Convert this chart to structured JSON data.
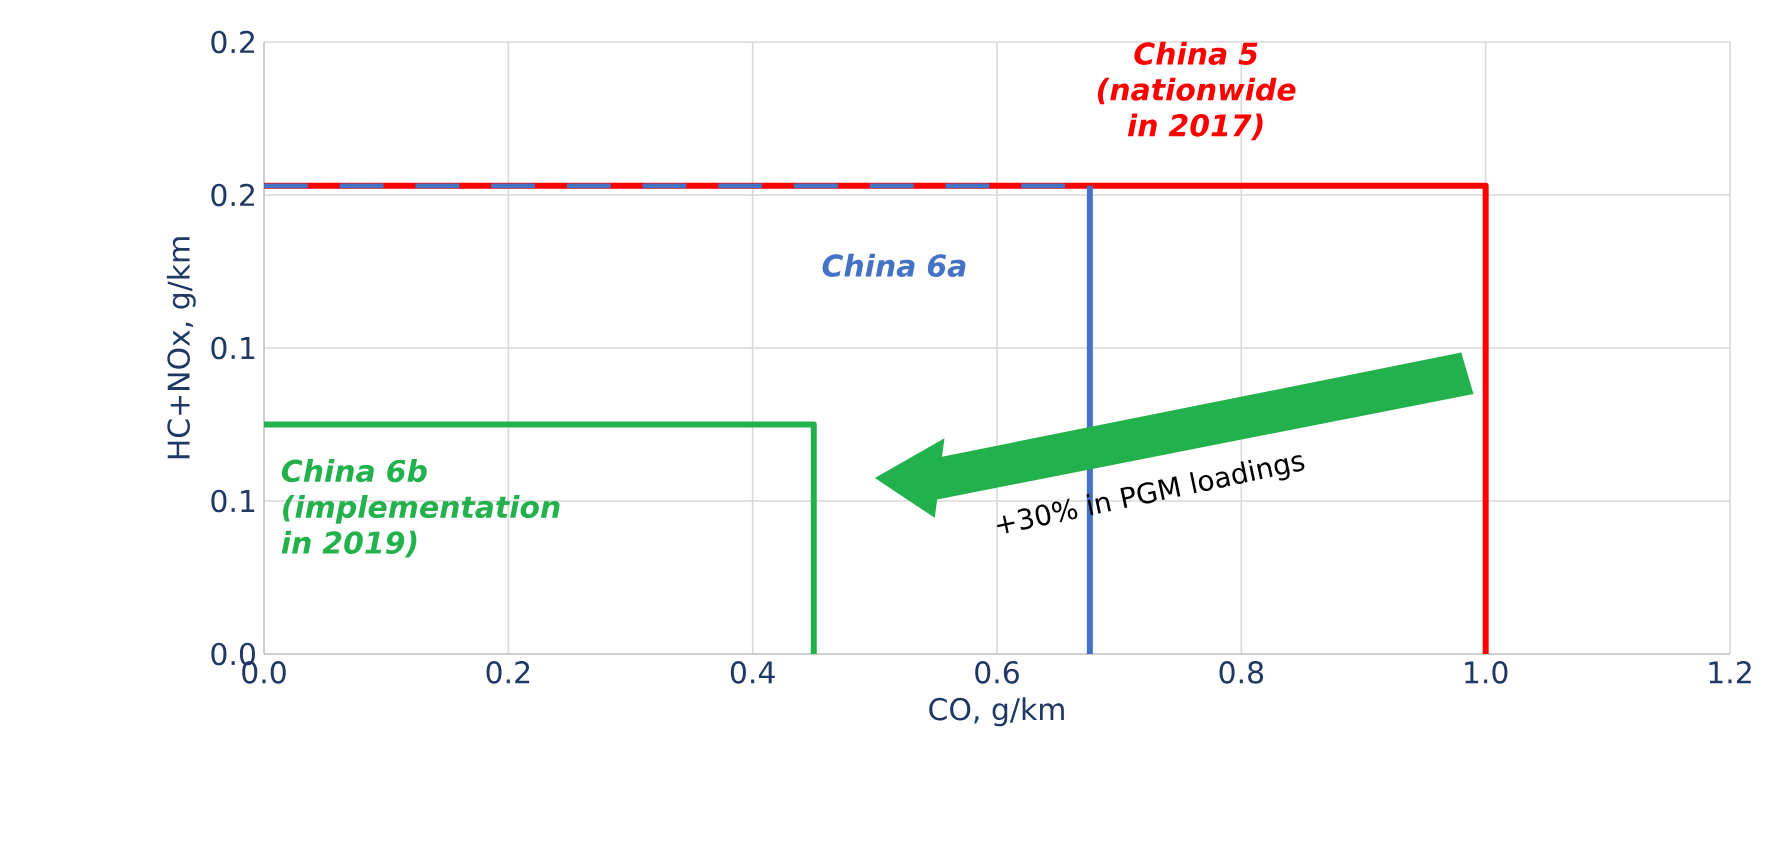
{
  "chart_data": {
    "type": "line",
    "xlabel": "CO, g/km",
    "ylabel": "HC+NOx, g/km",
    "xlim": [
      0,
      1.2
    ],
    "ylim": [
      0,
      0.2
    ],
    "xticks": [
      {
        "value": 0,
        "label": "0.0"
      },
      {
        "value": 0.2,
        "label": "0.2"
      },
      {
        "value": 0.4,
        "label": "0.4"
      },
      {
        "value": 0.6,
        "label": "0.6"
      },
      {
        "value": 0.8,
        "label": "0.8"
      },
      {
        "value": 1.0,
        "label": "1.0"
      },
      {
        "value": 1.2,
        "label": "1.2"
      }
    ],
    "yticks": [
      {
        "value": 0,
        "label": "0.0"
      },
      {
        "value": 0.05,
        "label": "0.1"
      },
      {
        "value": 0.1,
        "label": "0.1"
      },
      {
        "value": 0.15,
        "label": "0.2"
      },
      {
        "value": 0.2,
        "label": "0.2"
      }
    ],
    "grid": true,
    "series": [
      {
        "name": "China 5 (nationwide in 2017)",
        "color": "#ff0000",
        "x": [
          0,
          1.0,
          1.0
        ],
        "values": [
          0.153,
          0.153,
          0
        ]
      },
      {
        "name": "China 6a",
        "color": "#4472c4",
        "x": [
          0,
          0.676
        ],
        "values": [
          0.153,
          0.153
        ],
        "line_style": "dashed"
      },
      {
        "color": "#4472c4",
        "x": [
          0.676,
          0.676
        ],
        "values": [
          0.153,
          0
        ]
      },
      {
        "name": "China 6b (implementation in 2019)",
        "color": "#22b14c",
        "x": [
          0,
          0.45,
          0.45
        ],
        "values": [
          0.075,
          0.075,
          0
        ]
      }
    ],
    "annotations": [
      "+30% in PGM loadings"
    ]
  }
}
